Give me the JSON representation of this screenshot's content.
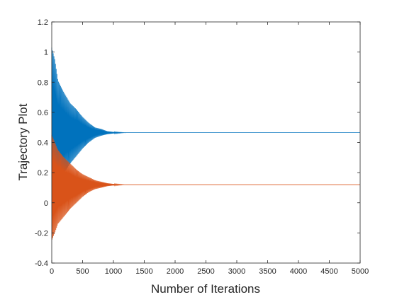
{
  "chart_data": {
    "type": "line",
    "title": "",
    "xlabel": "Number of Iterations",
    "ylabel": "Trajectory Plot",
    "xlim": [
      0,
      5000
    ],
    "ylim": [
      -0.4,
      1.2
    ],
    "xticks": [
      0,
      500,
      1000,
      1500,
      2000,
      2500,
      3000,
      3500,
      4000,
      4500,
      5000
    ],
    "yticks": [
      -0.4,
      -0.2,
      0,
      0.2,
      0.4,
      0.6,
      0.8,
      1,
      1.2
    ],
    "xtick_labels": [
      "0",
      "500",
      "1000",
      "1500",
      "2000",
      "2500",
      "3000",
      "3500",
      "4000",
      "4500",
      "5000"
    ],
    "ytick_labels": [
      "-0.4",
      "-0.2",
      "0",
      "0.2",
      "0.4",
      "0.6",
      "0.8",
      "1",
      "1.2"
    ],
    "grid": false,
    "legend": "none",
    "series": [
      {
        "color": "#0072BD",
        "steady_state": 0.465,
        "envelope_x": [
          0,
          50,
          100,
          200,
          300,
          400,
          500,
          600,
          700,
          800,
          900,
          1000,
          1200,
          5000
        ],
        "envelope_upper": [
          1.03,
          0.95,
          0.81,
          0.73,
          0.66,
          0.62,
          0.57,
          0.53,
          0.5,
          0.49,
          0.475,
          0.47,
          0.465,
          0.465
        ],
        "envelope_lower": [
          0.0,
          0.05,
          0.12,
          0.2,
          0.26,
          0.31,
          0.36,
          0.4,
          0.43,
          0.445,
          0.455,
          0.46,
          0.465,
          0.465
        ]
      },
      {
        "color": "#D95319",
        "steady_state": 0.12,
        "envelope_x": [
          0,
          50,
          100,
          200,
          300,
          400,
          500,
          600,
          700,
          800,
          900,
          1000,
          1200,
          5000
        ],
        "envelope_upper": [
          0.45,
          0.4,
          0.35,
          0.3,
          0.26,
          0.22,
          0.19,
          0.17,
          0.15,
          0.14,
          0.13,
          0.125,
          0.12,
          0.12
        ],
        "envelope_lower": [
          -0.25,
          -0.2,
          -0.14,
          -0.09,
          -0.04,
          0.0,
          0.04,
          0.07,
          0.09,
          0.1,
          0.11,
          0.115,
          0.12,
          0.12
        ]
      }
    ]
  }
}
